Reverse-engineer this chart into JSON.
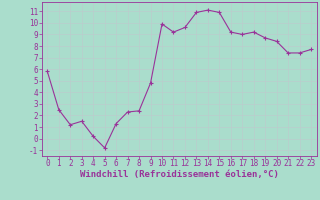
{
  "x": [
    0,
    1,
    2,
    3,
    4,
    5,
    6,
    7,
    8,
    9,
    10,
    11,
    12,
    13,
    14,
    15,
    16,
    17,
    18,
    19,
    20,
    21,
    22,
    23
  ],
  "y": [
    5.8,
    2.5,
    1.2,
    1.5,
    0.2,
    -0.8,
    1.3,
    2.3,
    2.4,
    4.8,
    9.9,
    9.2,
    9.6,
    10.9,
    11.1,
    10.9,
    9.2,
    9.0,
    9.2,
    8.7,
    8.4,
    7.4,
    7.4,
    7.7
  ],
  "line_color": "#993399",
  "marker": "+",
  "xlabel": "Windchill (Refroidissement éolien,°C)",
  "bg_color": "#aaddcc",
  "grid_color": "#bbcccc",
  "ylim": [
    -1.5,
    11.8
  ],
  "xlim": [
    -0.5,
    23.5
  ],
  "yticks": [
    -1,
    0,
    1,
    2,
    3,
    4,
    5,
    6,
    7,
    8,
    9,
    10,
    11
  ],
  "xtick_labels": [
    "0",
    "1",
    "2",
    "3",
    "4",
    "5",
    "6",
    "7",
    "8",
    "9",
    "10",
    "11",
    "12",
    "13",
    "14",
    "15",
    "16",
    "17",
    "18",
    "19",
    "20",
    "21",
    "22",
    "23"
  ],
  "font_color": "#993399",
  "font_size": 5.5,
  "xlabel_fontsize": 6.5,
  "markersize": 3,
  "linewidth": 0.8
}
